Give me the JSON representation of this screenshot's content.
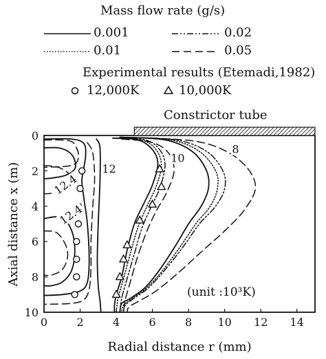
{
  "legend": {
    "title": "Mass flow rate (g/s)",
    "entries": [
      {
        "label": "0.001",
        "dash": "solid"
      },
      {
        "label": "0.02",
        "dash": "dashdot"
      },
      {
        "label": "0.01",
        "dash": "dotted"
      },
      {
        "label": "0.05",
        "dash": "dashed"
      }
    ],
    "experimental_title": "Experimental results (Etemadi,1982)",
    "markers": [
      {
        "symbol": "circle",
        "label": "12,000K"
      },
      {
        "symbol": "triangle",
        "label": "10,000K"
      }
    ]
  },
  "annotations": {
    "constrictor": "Constrictor tube",
    "unit": "(unit :10³K)"
  },
  "chart_data": {
    "type": "line",
    "xlabel": "Radial distance r (mm)",
    "ylabel": "Axial distance x (m)",
    "xlim": [
      0,
      15
    ],
    "ylim": [
      10,
      0
    ],
    "xticks": [
      "0",
      "2",
      "4",
      "6",
      "8",
      "10",
      "12",
      "14"
    ],
    "yticks": [
      "0",
      "2",
      "4",
      "6",
      "8",
      "10"
    ],
    "contour_labels": [
      {
        "text": "12",
        "x": 3.6,
        "y": 1.9
      },
      {
        "text": "10",
        "x": 7.4,
        "y": 1.3
      },
      {
        "text": "8",
        "x": 10.6,
        "y": 0.8
      },
      {
        "text": "12.4",
        "x": 1.2,
        "y": 2.8
      },
      {
        "text": "12.4",
        "x": 1.5,
        "y": 4.5
      }
    ],
    "constrictor_tube": {
      "r_start": 5,
      "r_end": 15,
      "x": 0
    },
    "series": [
      {
        "dash": "solid",
        "contours": [
          {
            "level": "12.4",
            "points": [
              [
                0,
                0.7
              ],
              [
                0.8,
                0.7
              ],
              [
                1.4,
                0.95
              ],
              [
                1.7,
                1.4
              ],
              [
                1.7,
                1.9
              ],
              [
                1.2,
                2.25
              ],
              [
                0.5,
                2.4
              ],
              [
                0,
                2.45
              ]
            ]
          },
          {
            "level": "12.4",
            "points": [
              [
                0,
                4.7
              ],
              [
                0.7,
                4.6
              ],
              [
                1.2,
                4.8
              ],
              [
                1.6,
                5.6
              ],
              [
                1.7,
                6.7
              ],
              [
                1.5,
                7.7
              ],
              [
                1.0,
                8.3
              ],
              [
                0.4,
                8.5
              ],
              [
                0,
                8.5
              ]
            ]
          },
          {
            "level": "12",
            "points": [
              [
                0,
                0.2
              ],
              [
                1.5,
                0.2
              ],
              [
                2.2,
                0.45
              ],
              [
                2.3,
                1.2
              ],
              [
                2.1,
                2.5
              ],
              [
                2.2,
                3.5
              ],
              [
                2.4,
                5.0
              ],
              [
                2.5,
                7.0
              ],
              [
                2.4,
                8.3
              ],
              [
                2.0,
                8.8
              ],
              [
                1.0,
                9.0
              ],
              [
                0,
                9.05
              ]
            ]
          },
          {
            "level": "12",
            "points": [
              [
                2.9,
                0.2
              ],
              [
                3.1,
                0.7
              ],
              [
                3.1,
                2.5
              ],
              [
                3.0,
                5.0
              ],
              [
                2.95,
                7.0
              ],
              [
                3.0,
                8.5
              ],
              [
                3.1,
                9.35
              ],
              [
                3.15,
                10.0
              ]
            ]
          },
          {
            "level": "10",
            "points": [
              [
                3.8,
                0.15
              ],
              [
                5.2,
                0.25
              ],
              [
                6.0,
                0.8
              ],
              [
                6.3,
                1.6
              ],
              [
                6.0,
                2.8
              ],
              [
                5.5,
                3.9
              ],
              [
                5.0,
                5.0
              ],
              [
                4.6,
                6.5
              ],
              [
                4.3,
                8.0
              ],
              [
                4.0,
                9.0
              ],
              [
                3.9,
                9.6
              ],
              [
                3.9,
                10.0
              ]
            ]
          },
          {
            "level": "8",
            "points": [
              [
                4.2,
                0.1
              ],
              [
                6.7,
                0.25
              ],
              [
                8.2,
                0.9
              ],
              [
                9.0,
                2.0
              ],
              [
                9.1,
                3.0
              ],
              [
                8.7,
                4.0
              ],
              [
                8.0,
                5.0
              ],
              [
                7.3,
                6.2
              ],
              [
                6.4,
                7.6
              ],
              [
                5.6,
                8.6
              ],
              [
                4.8,
                9.2
              ],
              [
                4.3,
                9.5
              ],
              [
                4.2,
                10.0
              ]
            ]
          }
        ]
      },
      {
        "dash": "dotted",
        "contours": [
          {
            "level": "10",
            "points": [
              [
                3.9,
                0.15
              ],
              [
                5.4,
                0.25
              ],
              [
                6.2,
                0.8
              ],
              [
                6.5,
                1.7
              ],
              [
                6.2,
                2.9
              ],
              [
                5.7,
                4.0
              ],
              [
                5.2,
                5.2
              ],
              [
                4.8,
                6.6
              ],
              [
                4.4,
                8.1
              ],
              [
                4.1,
                9.2
              ],
              [
                4.0,
                10.0
              ]
            ]
          },
          {
            "level": "8",
            "points": [
              [
                4.3,
                0.1
              ],
              [
                7.0,
                0.25
              ],
              [
                8.6,
                0.9
              ],
              [
                9.5,
                2.0
              ],
              [
                9.6,
                3.0
              ],
              [
                9.2,
                4.0
              ],
              [
                8.4,
                5.0
              ],
              [
                7.6,
                6.2
              ],
              [
                6.6,
                7.6
              ],
              [
                5.7,
                8.6
              ],
              [
                4.9,
                9.2
              ],
              [
                4.4,
                9.6
              ],
              [
                4.3,
                10.0
              ]
            ]
          }
        ]
      },
      {
        "dash": "dashdot",
        "contours": [
          {
            "level": "10",
            "points": [
              [
                4.0,
                0.15
              ],
              [
                5.6,
                0.25
              ],
              [
                6.4,
                0.8
              ],
              [
                6.7,
                1.7
              ],
              [
                6.4,
                3.0
              ],
              [
                5.9,
                4.1
              ],
              [
                5.4,
                5.3
              ],
              [
                5.0,
                6.7
              ],
              [
                4.6,
                8.1
              ],
              [
                4.3,
                9.2
              ],
              [
                4.2,
                10.0
              ]
            ]
          },
          {
            "level": "8",
            "points": [
              [
                4.4,
                0.1
              ],
              [
                7.3,
                0.25
              ],
              [
                9.0,
                0.9
              ],
              [
                9.9,
                2.0
              ],
              [
                10.0,
                3.0
              ],
              [
                9.5,
                4.0
              ],
              [
                8.6,
                5.0
              ],
              [
                7.7,
                6.3
              ],
              [
                6.7,
                7.6
              ],
              [
                5.8,
                8.6
              ],
              [
                5.0,
                9.2
              ],
              [
                4.5,
                9.6
              ],
              [
                4.4,
                10.0
              ]
            ]
          }
        ]
      },
      {
        "dash": "dashed",
        "contours": [
          {
            "level": "12.4",
            "points": [
              [
                0,
                1.7
              ],
              [
                0.8,
                1.8
              ],
              [
                1.4,
                2.2
              ],
              [
                1.4,
                2.7
              ],
              [
                0.8,
                3.2
              ],
              [
                0,
                3.3
              ]
            ]
          },
          {
            "level": "12.4",
            "points": [
              [
                0,
                5.4
              ],
              [
                0.7,
                5.5
              ],
              [
                1.2,
                6.2
              ],
              [
                1.3,
                6.9
              ],
              [
                1.0,
                7.6
              ],
              [
                0.4,
                7.9
              ],
              [
                0,
                7.9
              ]
            ]
          },
          {
            "level": "12",
            "points": [
              [
                0,
                0.25
              ],
              [
                1.4,
                0.3
              ],
              [
                1.8,
                0.7
              ],
              [
                1.9,
                1.3
              ],
              [
                1.5,
                1.7
              ],
              [
                0,
                1.8
              ]
            ]
          },
          {
            "level": "12",
            "points": [
              [
                2.4,
                0.4
              ],
              [
                2.7,
                1.0
              ],
              [
                2.8,
                2.5
              ],
              [
                2.7,
                4.0
              ],
              [
                2.6,
                6.0
              ],
              [
                2.6,
                7.5
              ],
              [
                2.5,
                8.7
              ],
              [
                2.2,
                9.3
              ],
              [
                1.5,
                9.5
              ],
              [
                0,
                9.55
              ]
            ]
          },
          {
            "level": "10",
            "points": [
              [
                4.3,
                0.2
              ],
              [
                6.0,
                0.4
              ],
              [
                6.9,
                1.0
              ],
              [
                7.2,
                2.0
              ],
              [
                6.8,
                3.2
              ],
              [
                6.2,
                4.3
              ],
              [
                5.7,
                5.4
              ],
              [
                5.2,
                6.8
              ],
              [
                4.8,
                8.2
              ],
              [
                4.5,
                9.3
              ],
              [
                4.4,
                10.0
              ]
            ]
          },
          {
            "level": "8",
            "points": [
              [
                4.6,
                0.1
              ],
              [
                8.2,
                0.3
              ],
              [
                10.1,
                0.9
              ],
              [
                11.3,
                1.9
              ],
              [
                11.7,
                3.0
              ],
              [
                11.1,
                4.2
              ],
              [
                10.1,
                5.3
              ],
              [
                8.8,
                6.5
              ],
              [
                7.4,
                7.8
              ],
              [
                6.2,
                8.8
              ],
              [
                5.2,
                9.4
              ],
              [
                4.7,
                9.7
              ],
              [
                4.6,
                10.0
              ]
            ]
          }
        ]
      }
    ],
    "experimental": [
      {
        "marker": "circle",
        "points": [
          [
            2.1,
            2.0
          ],
          [
            2.0,
            3.0
          ],
          [
            1.9,
            4.0
          ],
          [
            1.9,
            5.0
          ],
          [
            1.8,
            6.0
          ],
          [
            1.8,
            7.0
          ],
          [
            1.8,
            8.0
          ],
          [
            1.7,
            9.0
          ]
        ]
      },
      {
        "marker": "triangle",
        "points": [
          [
            6.4,
            1.9
          ],
          [
            6.5,
            2.9
          ],
          [
            6.0,
            3.9
          ],
          [
            5.3,
            4.8
          ],
          [
            4.6,
            6.2
          ],
          [
            4.4,
            7.0
          ],
          [
            4.2,
            8.0
          ],
          [
            4.0,
            9.0
          ]
        ]
      }
    ]
  }
}
